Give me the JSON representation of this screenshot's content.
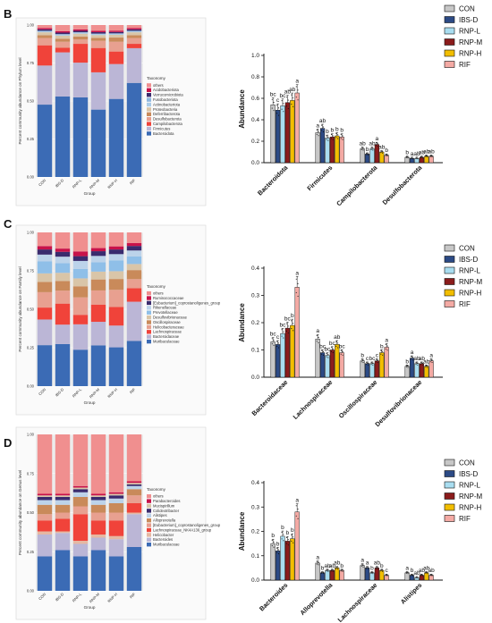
{
  "panels": [
    {
      "letter": "B",
      "stack": {
        "ylabel": "Percent community abundance on Phylum level",
        "xlabel": "Group",
        "groups": [
          "CON",
          "IBS-D",
          "RNP-L",
          "RNP-M",
          "RNP-H",
          "RIF"
        ],
        "legend_title": "Taxonomy",
        "taxa": [
          "others",
          "Acidobacteriota",
          "Verrucomicrobiota",
          "Fusobacteriota",
          "Actinobacteriota",
          "Proteobacteria",
          "Deferribacterota",
          "Desulfobacterota",
          "Campilobacterota",
          "Firmicutes",
          "Bacteroidota"
        ],
        "colors": [
          "#f08f8f",
          "#c8124a",
          "#3a2b6e",
          "#8fb7df",
          "#a9cbe8",
          "#d9c5a8",
          "#c98a5a",
          "#e8a090",
          "#f0433a",
          "#bbb6d6",
          "#3b6bb5"
        ],
        "values": [
          [
            0.02,
            0.01,
            0.01,
            0.0,
            0.01,
            0.02,
            0.02,
            0.05,
            0.14,
            0.27,
            0.5
          ],
          [
            0.04,
            0.01,
            0.01,
            0.0,
            0.01,
            0.02,
            0.02,
            0.04,
            0.03,
            0.29,
            0.53
          ],
          [
            0.03,
            0.01,
            0.01,
            0.0,
            0.01,
            0.02,
            0.02,
            0.03,
            0.13,
            0.24,
            0.55
          ],
          [
            0.04,
            0.01,
            0.01,
            0.0,
            0.01,
            0.02,
            0.02,
            0.05,
            0.17,
            0.26,
            0.47
          ],
          [
            0.04,
            0.01,
            0.01,
            0.0,
            0.01,
            0.02,
            0.03,
            0.07,
            0.09,
            0.25,
            0.56
          ],
          [
            0.02,
            0.01,
            0.01,
            0.0,
            0.01,
            0.02,
            0.02,
            0.04,
            0.03,
            0.24,
            0.65
          ]
        ]
      },
      "bars": {
        "ylabel": "Abundance",
        "ylim": [
          0,
          1.0
        ],
        "yticks": [
          "0.0",
          "0.2",
          "0.4",
          "0.6",
          "0.8",
          "1.0"
        ],
        "categories": [
          "Bacteroidota",
          "Firmicutes",
          "Campilobacterota",
          "Desulfobacterota"
        ],
        "series_names": [
          "CON",
          "IBS-D",
          "RNP-L",
          "RNP-M",
          "RNP-H",
          "RIF"
        ],
        "colors": [
          "#c7c7c7",
          "#2c4a85",
          "#a9ddf0",
          "#8b1c1c",
          "#f2be00",
          "#f4aaa4"
        ],
        "values": [
          [
            0.54,
            0.49,
            0.53,
            0.56,
            0.58,
            0.65
          ],
          [
            0.28,
            0.32,
            0.23,
            0.24,
            0.25,
            0.24
          ],
          [
            0.13,
            0.08,
            0.13,
            0.17,
            0.1,
            0.07
          ],
          [
            0.05,
            0.04,
            0.04,
            0.05,
            0.06,
            0.06
          ]
        ],
        "letters": [
          [
            "bc",
            "c",
            "bc",
            "ab",
            "ab",
            "a"
          ],
          [
            "a",
            "ab",
            "b",
            "b",
            "b",
            "b"
          ],
          [
            "ab",
            "b",
            "ab",
            "a",
            "ab",
            "b"
          ],
          [
            "b",
            "a",
            "ab",
            "ab",
            "ab",
            "ab"
          ]
        ]
      }
    },
    {
      "letter": "C",
      "stack": {
        "ylabel": "Percent community abundance on Family level",
        "xlabel": "Group",
        "groups": [
          "CON",
          "IBS-D",
          "RNP-L",
          "RNP-M",
          "RNP-H",
          "RIF"
        ],
        "legend_title": "Taxonomy",
        "taxa": [
          "others",
          "Ruminococcaceae",
          "[Eubacterium]_coprostanoligenes_group",
          "Rikenellaceae",
          "Prevotellaceae",
          "Desulfovibrionaceae",
          "Oscillospiraceae",
          "Helicobacteraceae",
          "Lachnospiraceae",
          "Bacteroidaceae",
          "Muribaculaceae"
        ],
        "colors": [
          "#f08f8f",
          "#c8124a",
          "#3a2b6e",
          "#bcd3ea",
          "#8fbfe8",
          "#d9c5a8",
          "#c98a5a",
          "#e8a090",
          "#f0433a",
          "#bbb6d6",
          "#3b6bb5"
        ],
        "values": [
          [
            0.08,
            0.02,
            0.03,
            0.04,
            0.07,
            0.05,
            0.06,
            0.09,
            0.07,
            0.15,
            0.24
          ],
          [
            0.1,
            0.02,
            0.03,
            0.04,
            0.06,
            0.05,
            0.06,
            0.08,
            0.13,
            0.12,
            0.26
          ],
          [
            0.12,
            0.03,
            0.03,
            0.05,
            0.06,
            0.05,
            0.07,
            0.11,
            0.06,
            0.16,
            0.23
          ],
          [
            0.1,
            0.02,
            0.03,
            0.04,
            0.06,
            0.05,
            0.07,
            0.09,
            0.11,
            0.15,
            0.26
          ],
          [
            0.09,
            0.02,
            0.03,
            0.04,
            0.07,
            0.05,
            0.07,
            0.11,
            0.12,
            0.14,
            0.25
          ],
          [
            0.07,
            0.02,
            0.03,
            0.04,
            0.05,
            0.04,
            0.06,
            0.06,
            0.09,
            0.26,
            0.3
          ]
        ]
      },
      "bars": {
        "ylabel": "Abundance",
        "ylim": [
          0,
          0.4
        ],
        "yticks": [
          "0.0",
          "0.1",
          "0.2",
          "0.3",
          "0.4"
        ],
        "categories": [
          "Bacteroidaceae",
          "Lachnospiraceae",
          "Oscillospiraceae",
          "Desulfovibrionaceae"
        ],
        "series_names": [
          "CON",
          "IBS-D",
          "RNP-L",
          "RNP-M",
          "RNP-H",
          "RIF"
        ],
        "colors": [
          "#c7c7c7",
          "#2c4a85",
          "#a9ddf0",
          "#8b1c1c",
          "#f2be00",
          "#f4aaa4"
        ],
        "values": [
          [
            0.13,
            0.12,
            0.16,
            0.18,
            0.19,
            0.33
          ],
          [
            0.14,
            0.09,
            0.08,
            0.1,
            0.12,
            0.09
          ],
          [
            0.06,
            0.05,
            0.05,
            0.06,
            0.09,
            0.11
          ],
          [
            0.04,
            0.07,
            0.05,
            0.05,
            0.04,
            0.06
          ]
        ],
        "letters": [
          [
            "bc",
            "c",
            "bc",
            "bc",
            "b",
            "a"
          ],
          [
            "a",
            "bc",
            "bc",
            "bc",
            "ab",
            "bc"
          ],
          [
            "b",
            "c",
            "bc",
            "c",
            "b",
            "a"
          ],
          [
            "b",
            "a",
            "ab",
            "ab",
            "ab",
            "a"
          ]
        ]
      }
    },
    {
      "letter": "D",
      "stack": {
        "ylabel": "Percent community abundance on Genus level",
        "xlabel": "Group",
        "groups": [
          "CON",
          "IBS-D",
          "RNP-L",
          "RNP-M",
          "RNP-H",
          "RIF"
        ],
        "legend_title": "Taxonomy",
        "taxa": [
          "others",
          "Parabacteroides",
          "Mucispirillum",
          "Colidextribacter",
          "Alistipes",
          "Alloprevotella",
          "[Eubacterium]_coprostanoligenes_group",
          "Lachnospiraceae_NK4A136_group",
          "Helicobacter",
          "Bacteroides",
          "Muribaculaceae"
        ],
        "colors": [
          "#f08f8f",
          "#c8124a",
          "#d9c5a8",
          "#3a2b6e",
          "#bcd3ea",
          "#c98a5a",
          "#e8a090",
          "#f0433a",
          "#e6b8a2",
          "#bbb6d6",
          "#3b6bb5"
        ],
        "values": [
          [
            0.38,
            0.01,
            0.01,
            0.02,
            0.03,
            0.06,
            0.04,
            0.07,
            0.02,
            0.14,
            0.22
          ],
          [
            0.38,
            0.01,
            0.01,
            0.02,
            0.03,
            0.05,
            0.04,
            0.08,
            0.01,
            0.11,
            0.26
          ],
          [
            0.33,
            0.01,
            0.01,
            0.02,
            0.03,
            0.06,
            0.05,
            0.17,
            0.02,
            0.08,
            0.22
          ],
          [
            0.38,
            0.01,
            0.01,
            0.02,
            0.03,
            0.05,
            0.05,
            0.09,
            0.02,
            0.08,
            0.26
          ],
          [
            0.37,
            0.01,
            0.01,
            0.02,
            0.03,
            0.06,
            0.05,
            0.1,
            0.02,
            0.11,
            0.22
          ],
          [
            0.3,
            0.01,
            0.01,
            0.01,
            0.02,
            0.04,
            0.05,
            0.06,
            0.01,
            0.21,
            0.28
          ]
        ]
      },
      "bars": {
        "ylabel": "Abundance",
        "ylim": [
          0,
          0.4
        ],
        "yticks": [
          "0.0",
          "0.1",
          "0.2",
          "0.3",
          "0.4"
        ],
        "categories": [
          "Bacteroides",
          "Alloprevotella",
          "Lachnospiraceae",
          "Alistipes"
        ],
        "series_names": [
          "CON",
          "IBS-D",
          "RNP-L",
          "RNP-M",
          "RNP-H",
          "RIF"
        ],
        "colors": [
          "#c7c7c7",
          "#2c4a85",
          "#a9ddf0",
          "#8b1c1c",
          "#f2be00",
          "#f4aaa4"
        ],
        "values": [
          [
            0.15,
            0.12,
            0.18,
            0.16,
            0.17,
            0.28
          ],
          [
            0.07,
            0.03,
            0.04,
            0.04,
            0.05,
            0.04
          ],
          [
            0.06,
            0.05,
            0.03,
            0.05,
            0.04,
            0.02
          ],
          [
            0.03,
            0.02,
            0.01,
            0.02,
            0.03,
            0.02
          ]
        ],
        "letters": [
          [
            "b",
            "b",
            "b",
            "b",
            "b",
            "a"
          ],
          [
            "a",
            "b",
            "ab",
            "ab",
            "ab",
            "b"
          ],
          [
            "a",
            "a",
            "b",
            "ab",
            "b",
            "c"
          ],
          [
            "a",
            "b",
            "ab",
            "ab",
            "ab",
            "ab"
          ]
        ]
      }
    }
  ]
}
